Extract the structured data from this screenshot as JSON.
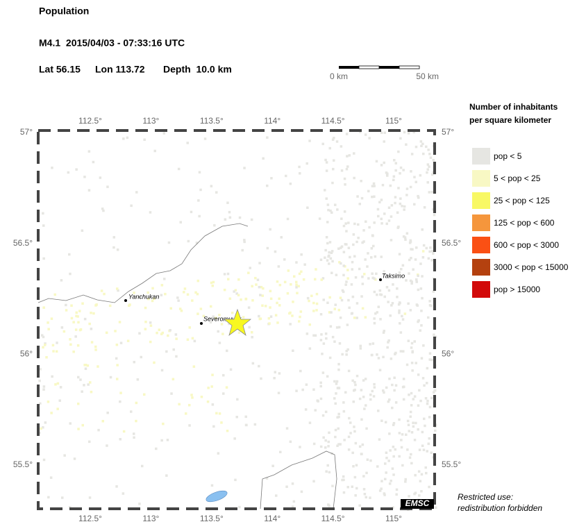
{
  "header": {
    "title": "Population",
    "event": "M4.1  2015/04/03 - 07:33:16 UTC",
    "location": {
      "lat": "Lat 56.15",
      "lon": "Lon 113.72",
      "depth": "Depth  10.0 km"
    }
  },
  "scale_bar": {
    "start": "0 km",
    "end": "50 km"
  },
  "map": {
    "lon_ticks": [
      {
        "value": 112.5,
        "label": "112.5°"
      },
      {
        "value": 113,
        "label": "113°"
      },
      {
        "value": 113.5,
        "label": "113.5°"
      },
      {
        "value": 114,
        "label": "114°"
      },
      {
        "value": 114.5,
        "label": "114.5°"
      },
      {
        "value": 115,
        "label": "115°"
      }
    ],
    "lat_ticks": [
      {
        "value": 57,
        "label": "57°"
      },
      {
        "value": 56.5,
        "label": "56.5°"
      },
      {
        "value": 56,
        "label": "56°"
      },
      {
        "value": 55.5,
        "label": "55.5°"
      }
    ],
    "places": [
      "Yanchukan",
      "Severomuysk",
      "Taksimo"
    ]
  },
  "legend": {
    "title": [
      "Number of inhabitants",
      "per square kilometer"
    ],
    "items": [
      {
        "label": "pop < 5",
        "color": "#e6e6e2"
      },
      {
        "label": "5 < pop < 25",
        "color": "#f8f8c4"
      },
      {
        "label": "25 < pop < 125",
        "color": "#f8f864"
      },
      {
        "label": "125 < pop < 600",
        "color": "#f5963c"
      },
      {
        "label": "600 < pop < 3000",
        "color": "#fa5014"
      },
      {
        "label": "3000 < pop < 15000",
        "color": "#b4410f"
      },
      {
        "label": "pop > 15000",
        "color": "#d20a0a"
      }
    ]
  },
  "notice": [
    "Restricted use:",
    "redistribution forbidden"
  ],
  "logo": "EMSC"
}
